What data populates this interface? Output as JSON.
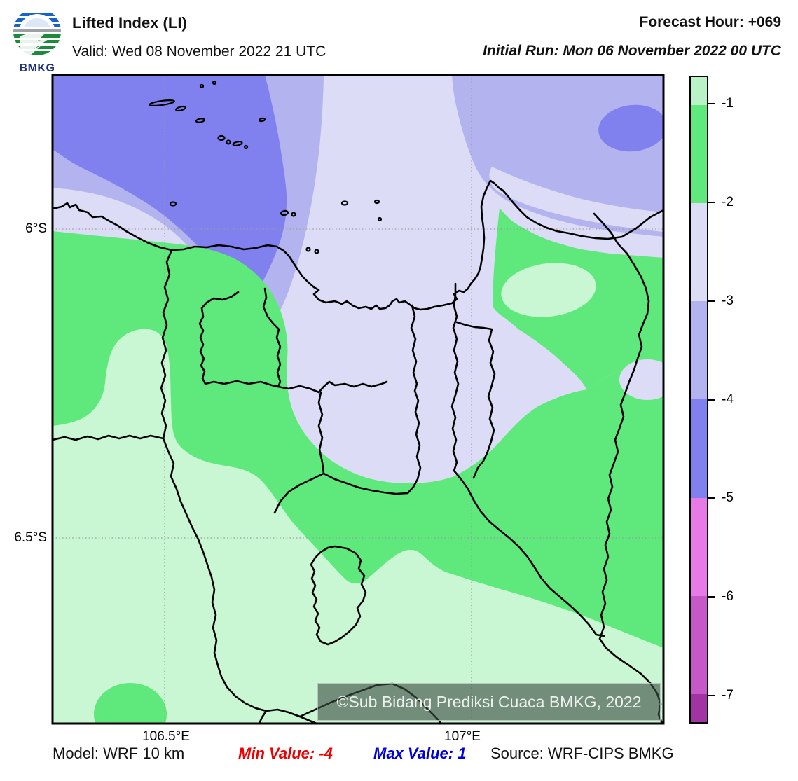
{
  "header": {
    "logo_text": "BMKG",
    "title": "Lifted Index (LI)",
    "valid": "Valid: Wed 08 November 2022 21 UTC",
    "forecast_hour": "Forecast Hour: +069",
    "initial_run": "Initial Run: Mon 06 November 2022 00 UTC"
  },
  "axes": {
    "y_ticks": [
      {
        "label": "6°S"
      },
      {
        "label": "6.5°S"
      }
    ],
    "x_ticks": [
      {
        "label": "106.5°E"
      },
      {
        "label": "107°E"
      }
    ]
  },
  "colorbar": {
    "tick_labels": [
      "-1",
      "-2",
      "-3",
      "-4",
      "-5",
      "-6",
      "-7"
    ],
    "segment_colors": [
      "#b9f2c6",
      "#5fe87b",
      "#dcdcf6",
      "#b3b3ef",
      "#8080ee",
      "#e87ae8",
      "#c758c8",
      "#a233a2"
    ]
  },
  "watermark": {
    "text": "©Sub Bidang Prediksi Cuaca BMKG, 2022"
  },
  "footer": {
    "model": "Model: WRF 10 km",
    "min_value": "Min Value: -4",
    "max_value": "Max Value: 1",
    "source": "Source: WRF-CIPS BMKG",
    "min_color": "#ee0000",
    "max_color": "#0000dd"
  },
  "palette": {
    "pale_green": "#c9f6d3",
    "green": "#5fe87b",
    "pale_lavender": "#dcdcf6",
    "light_purple": "#b3b3ef",
    "blue_purple": "#8080ee",
    "gridline": "#9a9a9a",
    "boundary": "#000000"
  },
  "chart_data": {
    "type": "heatmap",
    "subtype": "filled-contour-weather-map",
    "parameter": "Lifted Index (LI)",
    "model": "WRF 10 km",
    "forecast_hour": 69,
    "valid_time": "Wed 08 November 2022 21 UTC",
    "initial_run": "Mon 06 November 2022 00 UTC",
    "min_value": -4,
    "max_value": 1,
    "contour_levels": [
      -7,
      -6,
      -5,
      -4,
      -3,
      -2,
      -1
    ],
    "level_colors_below_to_above": [
      "#a233a2",
      "#c758c8",
      "#e87ae8",
      "#8080ee",
      "#b3b3ef",
      "#dcdcf6",
      "#5fe87b",
      "#b9f2c6"
    ],
    "lon_ticks": [
      "106.5°E",
      "107°E"
    ],
    "lat_ticks": [
      "6°S",
      "6.5°S"
    ],
    "region_summary": "Sea north of Jakarta: LI -3 to -5 (purples, most unstable NW corner); Jakarta metro wedge -2 to -3 (pale lavender); surrounding land -1 to -2 (green); southern/southwestern land above -1 (pale green)."
  }
}
